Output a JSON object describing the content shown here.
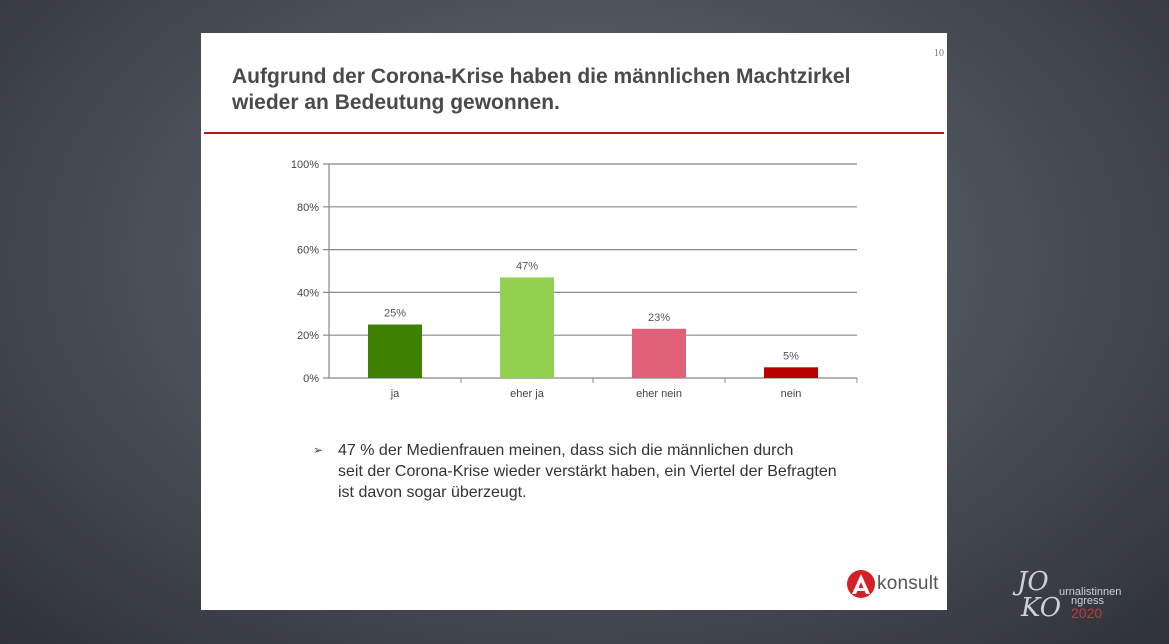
{
  "slide": {
    "page_number": "10",
    "title": "Aufgrund der Corona-Krise haben die männlichen Machtzirkel\nwieder an Bedeutung gewonnen.",
    "bullet_marker": "➢",
    "bullet_text": "47 % der Medienfrauen meinen, dass sich die männlichen durch\nseit der Corona-Krise wieder verstärkt haben, ein Viertel der Befragten\nist davon sogar überzeugt.",
    "logo_text": "konsult",
    "accent_color": "#c0151b"
  },
  "chart_data": {
    "type": "bar",
    "title": "",
    "xlabel": "",
    "ylabel": "",
    "categories": [
      "ja",
      "eher ja",
      "eher nein",
      "nein"
    ],
    "values": [
      25,
      47,
      23,
      5
    ],
    "value_labels": [
      "25%",
      "47%",
      "23%",
      "5%"
    ],
    "colors": [
      "#3f8000",
      "#92d050",
      "#e06078",
      "#b80000"
    ],
    "ylim": [
      0,
      100
    ],
    "yticks": [
      0,
      20,
      40,
      60,
      80,
      100
    ],
    "ytick_labels": [
      "0%",
      "20%",
      "40%",
      "60%",
      "80%",
      "100%"
    ],
    "grid": true,
    "legend": "none"
  },
  "branding": {
    "initials_top": "JO",
    "initials_bottom": "KO",
    "word_top": "urnalistinnen",
    "word_bottom": "ngress",
    "year": "2020"
  }
}
